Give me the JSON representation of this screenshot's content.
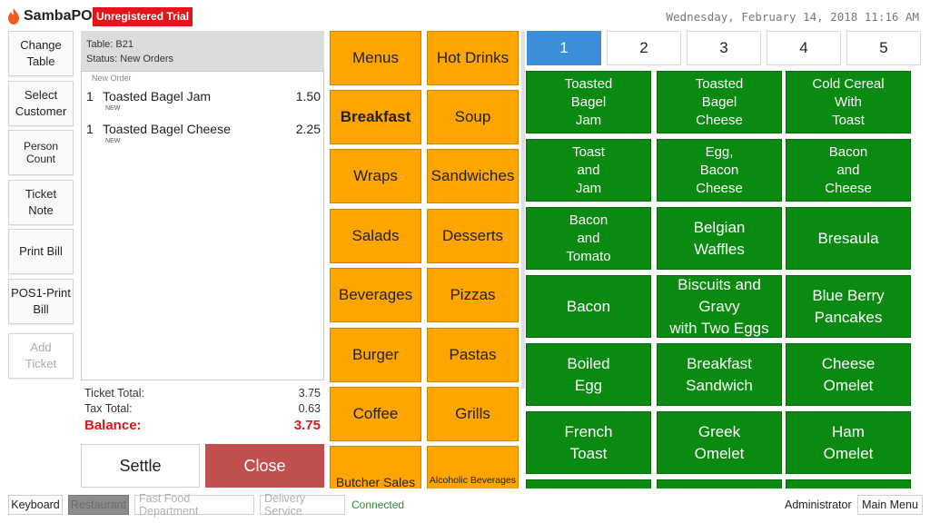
{
  "header": {
    "app_name": "SambaPOS",
    "trial_label": "Unregistered Trial",
    "datetime": "Wednesday, February 14, 2018 11:16 AM"
  },
  "left_actions": [
    {
      "label": "Change Table",
      "enabled": true
    },
    {
      "label": "Select Customer",
      "enabled": true
    },
    {
      "label": "Person Count",
      "enabled": true
    },
    {
      "label": "Ticket Note",
      "enabled": true
    },
    {
      "label": "Print Bill",
      "enabled": true
    },
    {
      "label": "POS1-Print Bill",
      "enabled": true
    },
    {
      "label": "Add Ticket",
      "enabled": false
    }
  ],
  "ticket": {
    "table": "Table: B21",
    "status": "Status: New Orders",
    "order_label": "New Order",
    "orders": [
      {
        "qty": "1",
        "name": "Toasted Bagel Jam",
        "price": "1.50",
        "tag": "NEW"
      },
      {
        "qty": "1",
        "name": "Toasted Bagel Cheese",
        "price": "2.25",
        "tag": "NEW"
      }
    ],
    "totals": {
      "ticket_total_label": "Ticket Total:",
      "ticket_total": "3.75",
      "tax_total_label": "Tax Total:",
      "tax_total": "0.63",
      "balance_label": "Balance:",
      "balance": "3.75"
    },
    "settle_label": "Settle",
    "close_label": "Close"
  },
  "categories": [
    {
      "label": "Menus"
    },
    {
      "label": "Hot Drinks"
    },
    {
      "label": "Breakfast",
      "selected": true
    },
    {
      "label": "Soup"
    },
    {
      "label": "Wraps"
    },
    {
      "label": "Sandwiches"
    },
    {
      "label": "Salads"
    },
    {
      "label": "Desserts"
    },
    {
      "label": "Beverages"
    },
    {
      "label": "Pizzas"
    },
    {
      "label": "Burger"
    },
    {
      "label": "Pastas"
    },
    {
      "label": "Coffee"
    },
    {
      "label": "Grills"
    },
    {
      "label": "Butcher Sales"
    },
    {
      "label": "Alcoholic Beverages"
    }
  ],
  "pages": [
    "1",
    "2",
    "3",
    "4",
    "5"
  ],
  "active_page": "1",
  "products": [
    "Toasted\nBagel\nJam",
    "Toasted\nBagel\nCheese",
    "Cold Cereal\nWith\nToast",
    "Toast\nand\nJam",
    "Egg,\nBacon\nCheese",
    "Bacon\nand\nCheese",
    "Bacon\nand\nTomato",
    "Belgian\nWaffles",
    "Bresaula",
    "Bacon",
    "Biscuits and Gravy\nwith Two Eggs",
    "Blue Berry\nPancakes",
    "Boiled\nEgg",
    "Breakfast\nSandwich",
    "Cheese\nOmelet",
    "French\nToast",
    "Greek\nOmelet",
    "Ham\nOmelet",
    "",
    "",
    ""
  ],
  "bottom_bar": {
    "keyboard": "Keyboard",
    "restaurant": "Restaurant",
    "fast_food": "Fast Food Department",
    "delivery": "Delivery Service",
    "connection_status": "Connected",
    "user": "Administrator",
    "main_menu": "Main Menu"
  },
  "colors": {
    "category": "#ffa500",
    "product": "#0b8a12",
    "active_tab": "#3a8fd8",
    "close_button": "#c0504d",
    "balance": "#e3151a",
    "trial_badge": "#e3151a"
  }
}
